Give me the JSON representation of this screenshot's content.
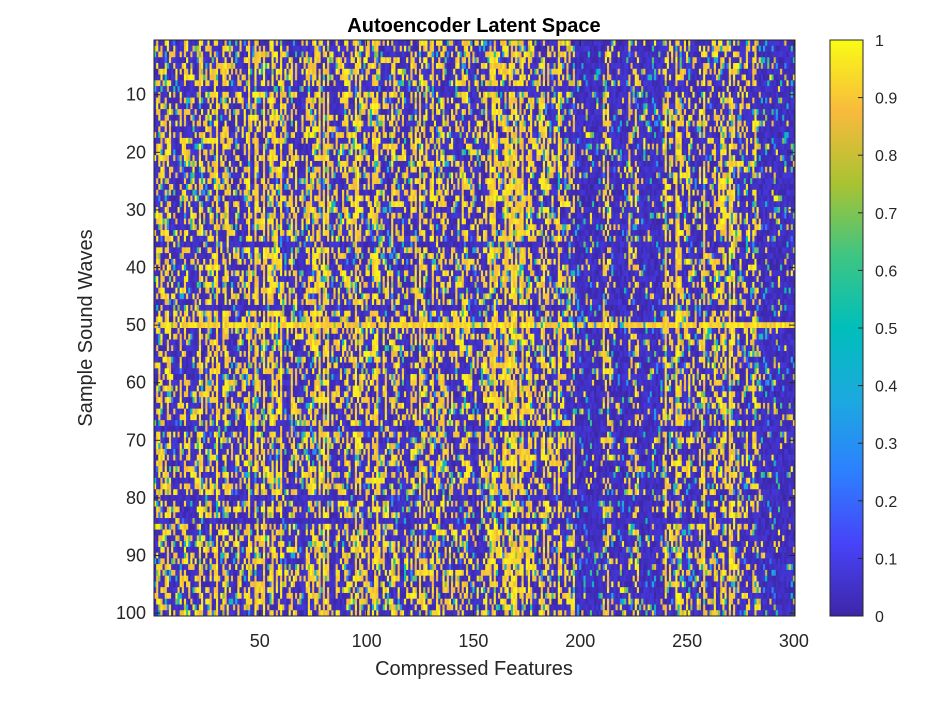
{
  "chart_data": {
    "type": "heatmap",
    "title": "Autoencoder Latent Space",
    "xlabel": "Compressed Features",
    "ylabel": "Sample Sound Waves",
    "x_range": [
      1,
      300
    ],
    "y_range": [
      1,
      100
    ],
    "y_direction": "reversed",
    "n_rows": 100,
    "n_cols": 300,
    "x_ticks": [
      50,
      100,
      150,
      200,
      250,
      300
    ],
    "y_ticks": [
      10,
      20,
      30,
      40,
      50,
      60,
      70,
      80,
      90,
      100
    ],
    "colorbar": {
      "colormap": "parula",
      "min": 0,
      "max": 1,
      "ticks": [
        0,
        0.1,
        0.2,
        0.3,
        0.4,
        0.5,
        0.6,
        0.7,
        0.8,
        0.9,
        1
      ],
      "stops": [
        "#3e26a8",
        "#4743f8",
        "#2d80ff",
        "#1ca9df",
        "#00bfbb",
        "#3ec583",
        "#a8c331",
        "#f8ba3d",
        "#f9fb15"
      ]
    },
    "value_distribution": "mostly binary-like: 0 (dark blue) or 1 (yellow) with sparse intermediate values",
    "dense_columns": [
      22,
      30,
      45,
      48,
      52,
      56,
      60,
      78,
      80,
      82,
      95,
      105,
      125,
      160,
      165,
      168,
      170,
      173,
      190,
      240,
      245,
      258,
      270
    ],
    "sparse_column_ranges": [
      [
        198,
        210
      ],
      [
        216,
        222
      ],
      [
        228,
        238
      ],
      [
        285,
        300
      ]
    ],
    "dense_rows": [
      50
    ],
    "sparse_rows": [
      9,
      36,
      47,
      68,
      80,
      84
    ]
  }
}
